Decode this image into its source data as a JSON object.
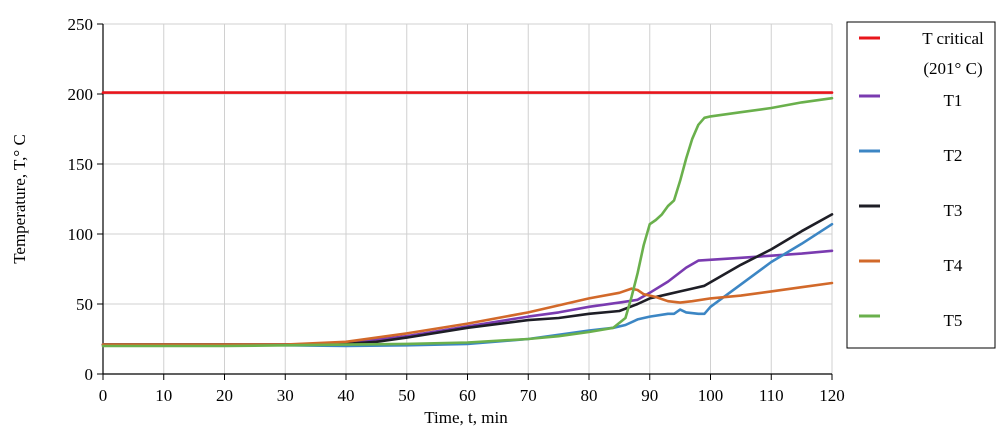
{
  "chart_data": {
    "type": "line",
    "title": "",
    "xlabel": "Time, t, min",
    "ylabel": "Temperature, T,° C",
    "xlim": [
      0,
      120
    ],
    "ylim": [
      0,
      250
    ],
    "x_ticks": [
      0,
      10,
      20,
      30,
      40,
      50,
      60,
      70,
      80,
      90,
      100,
      110,
      120
    ],
    "y_ticks": [
      0,
      50,
      100,
      150,
      200,
      250
    ],
    "grid": true,
    "legend_position": "right",
    "series": [
      {
        "name": "T critical",
        "name_line2": "(201° C)",
        "color": "#e8151b",
        "points": [
          [
            0,
            201
          ],
          [
            120,
            201
          ]
        ]
      },
      {
        "name": "T1",
        "color": "#7a3bb0",
        "points": [
          [
            0,
            21
          ],
          [
            20,
            21
          ],
          [
            30,
            21
          ],
          [
            40,
            22
          ],
          [
            50,
            27
          ],
          [
            60,
            34
          ],
          [
            70,
            41
          ],
          [
            75,
            44
          ],
          [
            80,
            48
          ],
          [
            85,
            51
          ],
          [
            88,
            53
          ],
          [
            90,
            58
          ],
          [
            93,
            66
          ],
          [
            96,
            76
          ],
          [
            98,
            81
          ],
          [
            105,
            83
          ],
          [
            110,
            84.5
          ],
          [
            115,
            86
          ],
          [
            120,
            88
          ]
        ]
      },
      {
        "name": "T2",
        "color": "#3c86c4",
        "points": [
          [
            0,
            21
          ],
          [
            20,
            21
          ],
          [
            40,
            20
          ],
          [
            50,
            20.5
          ],
          [
            60,
            21.5
          ],
          [
            70,
            25
          ],
          [
            75,
            28
          ],
          [
            80,
            31
          ],
          [
            84,
            33
          ],
          [
            86,
            35
          ],
          [
            88,
            39
          ],
          [
            90,
            41
          ],
          [
            93,
            43
          ],
          [
            94,
            43
          ],
          [
            95,
            46
          ],
          [
            96,
            44
          ],
          [
            98,
            43
          ],
          [
            99,
            43
          ],
          [
            100,
            48
          ],
          [
            105,
            64
          ],
          [
            110,
            80
          ],
          [
            115,
            93
          ],
          [
            120,
            107
          ]
        ]
      },
      {
        "name": "T3",
        "color": "#1e1e26",
        "points": [
          [
            0,
            21
          ],
          [
            20,
            21
          ],
          [
            30,
            21
          ],
          [
            40,
            21.5
          ],
          [
            45,
            23
          ],
          [
            50,
            26
          ],
          [
            60,
            33
          ],
          [
            70,
            38.5
          ],
          [
            75,
            40
          ],
          [
            80,
            43
          ],
          [
            85,
            45
          ],
          [
            88,
            50
          ],
          [
            90,
            54
          ],
          [
            93,
            57
          ],
          [
            95,
            59
          ],
          [
            97,
            61
          ],
          [
            99,
            63
          ],
          [
            105,
            78
          ],
          [
            110,
            89
          ],
          [
            115,
            102
          ],
          [
            120,
            114
          ]
        ]
      },
      {
        "name": "T4",
        "color": "#d2692a",
        "points": [
          [
            0,
            21
          ],
          [
            20,
            21
          ],
          [
            30,
            21
          ],
          [
            40,
            23
          ],
          [
            50,
            29
          ],
          [
            60,
            36
          ],
          [
            70,
            44
          ],
          [
            75,
            49
          ],
          [
            80,
            54
          ],
          [
            85,
            58
          ],
          [
            87,
            61
          ],
          [
            88,
            60
          ],
          [
            89,
            57
          ],
          [
            91,
            55
          ],
          [
            93,
            52
          ],
          [
            95,
            51
          ],
          [
            97,
            52
          ],
          [
            100,
            54
          ],
          [
            105,
            56
          ],
          [
            110,
            59
          ],
          [
            115,
            62
          ],
          [
            120,
            65
          ]
        ]
      },
      {
        "name": "T5",
        "color": "#6ab04c",
        "points": [
          [
            0,
            20
          ],
          [
            20,
            20
          ],
          [
            30,
            20.5
          ],
          [
            40,
            21
          ],
          [
            50,
            21.5
          ],
          [
            60,
            22.5
          ],
          [
            70,
            25
          ],
          [
            75,
            27
          ],
          [
            80,
            30
          ],
          [
            84,
            33
          ],
          [
            86,
            40
          ],
          [
            87,
            55
          ],
          [
            88,
            72
          ],
          [
            89,
            92
          ],
          [
            90,
            107
          ],
          [
            91,
            110
          ],
          [
            92,
            114
          ],
          [
            93,
            120
          ],
          [
            94,
            124
          ],
          [
            95,
            138
          ],
          [
            96,
            154
          ],
          [
            97,
            168
          ],
          [
            98,
            178
          ],
          [
            99,
            183
          ],
          [
            100,
            184
          ],
          [
            105,
            187
          ],
          [
            110,
            190
          ],
          [
            115,
            194
          ],
          [
            120,
            197
          ]
        ]
      }
    ]
  }
}
